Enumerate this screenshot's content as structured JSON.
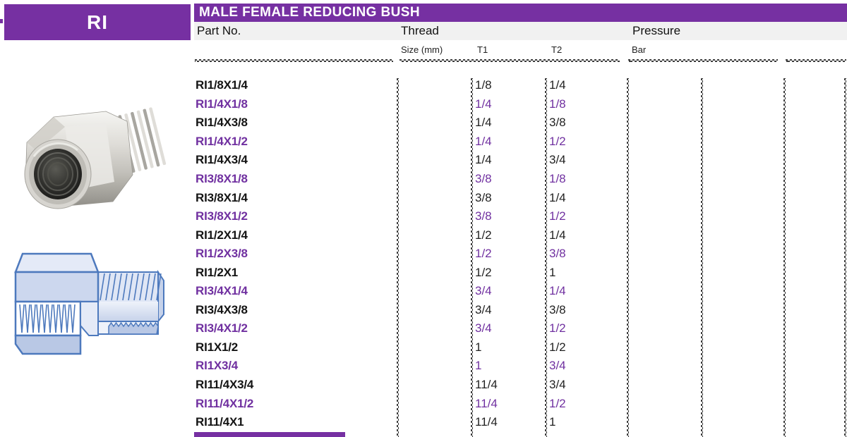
{
  "page": {
    "series_code": "RI",
    "title": "MALE FEMALE REDUCING BUSH"
  },
  "colors": {
    "accent_purple": "#7630a2",
    "purple_row_text": "#7030a0",
    "header_band_bg": "#f1f1f1",
    "rule_color": "#3c3c3c",
    "drawing_blue": "#4d79bd"
  },
  "table": {
    "group_headers": [
      {
        "label": "Part No."
      },
      {
        "label": "Thread"
      },
      {
        "label": "Pressure"
      }
    ],
    "sub_headers": [
      "Size (mm)",
      "T1",
      "T2",
      "Bar"
    ],
    "rows": [
      {
        "part_no": "RI1/8X1/4",
        "size_mm": "",
        "t1": "1/8",
        "t2": "1/4",
        "bar": "",
        "purple": false
      },
      {
        "part_no": "RI1/4X1/8",
        "size_mm": "",
        "t1": "1/4",
        "t2": "1/8",
        "bar": "",
        "purple": true
      },
      {
        "part_no": "RI1/4X3/8",
        "size_mm": "",
        "t1": "1/4",
        "t2": "3/8",
        "bar": "",
        "purple": false
      },
      {
        "part_no": "RI1/4X1/2",
        "size_mm": "",
        "t1": "1/4",
        "t2": "1/2",
        "bar": "",
        "purple": true
      },
      {
        "part_no": "RI1/4X3/4",
        "size_mm": "",
        "t1": "1/4",
        "t2": "3/4",
        "bar": "",
        "purple": false
      },
      {
        "part_no": "RI3/8X1/8",
        "size_mm": "",
        "t1": "3/8",
        "t2": "1/8",
        "bar": "",
        "purple": true
      },
      {
        "part_no": "RI3/8X1/4",
        "size_mm": "",
        "t1": "3/8",
        "t2": "1/4",
        "bar": "",
        "purple": false
      },
      {
        "part_no": "RI3/8X1/2",
        "size_mm": "",
        "t1": "3/8",
        "t2": "1/2",
        "bar": "",
        "purple": true
      },
      {
        "part_no": "RI1/2X1/4",
        "size_mm": "",
        "t1": "1/2",
        "t2": "1/4",
        "bar": "",
        "purple": false
      },
      {
        "part_no": "RI1/2X3/8",
        "size_mm": "",
        "t1": "1/2",
        "t2": "3/8",
        "bar": "",
        "purple": true
      },
      {
        "part_no": "RI1/2X1",
        "size_mm": "",
        "t1": "1/2",
        "t2": "1",
        "bar": "",
        "purple": false
      },
      {
        "part_no": "RI3/4X1/4",
        "size_mm": "",
        "t1": "3/4",
        "t2": "1/4",
        "bar": "",
        "purple": true
      },
      {
        "part_no": "RI3/4X3/8",
        "size_mm": "",
        "t1": "3/4",
        "t2": "3/8",
        "bar": "",
        "purple": false
      },
      {
        "part_no": "RI3/4X1/2",
        "size_mm": "",
        "t1": "3/4",
        "t2": "1/2",
        "bar": "",
        "purple": true
      },
      {
        "part_no": "RI1X1/2",
        "size_mm": "",
        "t1": "1",
        "t2": "1/2",
        "bar": "",
        "purple": false
      },
      {
        "part_no": "RI1X3/4",
        "size_mm": "",
        "t1": "1",
        "t2": "3/4",
        "bar": "",
        "purple": true
      },
      {
        "part_no": "RI11/4X3/4",
        "size_mm": "",
        "t1": "11/4",
        "t2": "3/4",
        "bar": "",
        "purple": false
      },
      {
        "part_no": "RI11/4X1/2",
        "size_mm": "",
        "t1": "11/4",
        "t2": "1/2",
        "bar": "",
        "purple": true
      },
      {
        "part_no": "RI11/4X1",
        "size_mm": "",
        "t1": "11/4",
        "t2": "1",
        "bar": "",
        "purple": false
      }
    ]
  },
  "images": {
    "photo_name": "stainless-reducing-bush-photo",
    "drawing_name": "reducing-bush-cross-section-drawing"
  }
}
